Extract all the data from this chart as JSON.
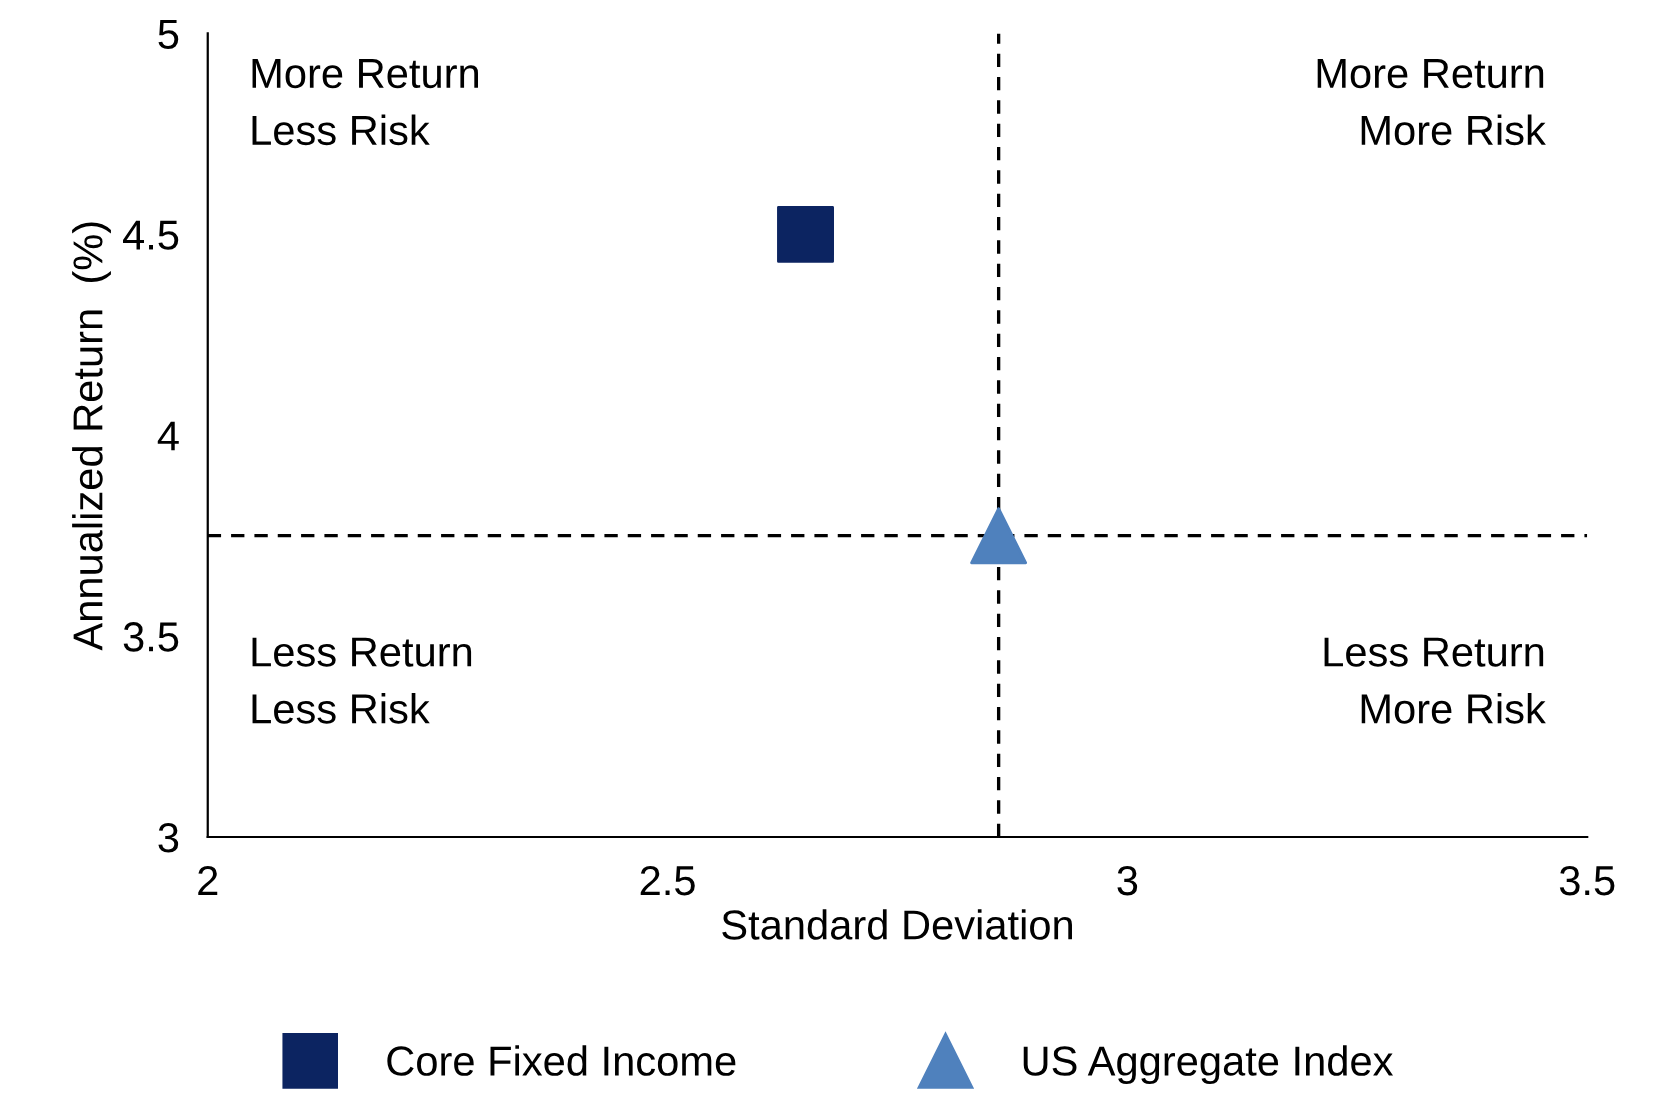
{
  "chart_data": {
    "type": "scatter",
    "xlabel": "Standard Deviation",
    "ylabel": "Annualized Return  (%)",
    "series": [
      {
        "name": "Core Fixed Income",
        "color": "#0c2461",
        "x": [
          2.65
        ],
        "values": [
          4.5
        ],
        "marker": "square"
      },
      {
        "name": "US Aggregate Index",
        "color": "#4f81bd",
        "x": [
          2.86
        ],
        "values": [
          3.75
        ],
        "marker": "triangle"
      }
    ],
    "xlim": [
      2,
      3.5
    ],
    "xticks": [
      2,
      2.5,
      3,
      3.5
    ],
    "ylim": [
      3,
      5
    ],
    "yticks": [
      3,
      3.5,
      4,
      4.5,
      5
    ],
    "ref_lines": [
      {
        "axis": "x",
        "value": 2.86,
        "color": "#000000",
        "line_style": "dashed"
      },
      {
        "axis": "y",
        "value": 3.75,
        "color": "#000000",
        "line_style": "dashed"
      }
    ],
    "annotations": [
      "More Return\nLess Risk",
      "More Return\nMore Risk",
      "Less Return\nLess Risk",
      "Less Return\nMore Risk"
    ],
    "grid": false,
    "legend": "bottom"
  }
}
